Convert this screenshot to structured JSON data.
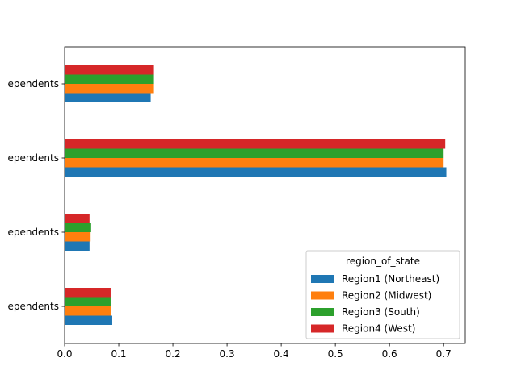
{
  "chart_data": {
    "type": "bar",
    "orientation": "horizontal",
    "categories": [
      "ependents",
      "ependents",
      "ependents",
      "ependents"
    ],
    "series": [
      {
        "name": "Region1 (Northeast)",
        "color": "#1f77b4",
        "values": [
          0.088,
          0.046,
          0.705,
          0.159
        ]
      },
      {
        "name": "Region2 (Midwest)",
        "color": "#ff7f0e",
        "values": [
          0.085,
          0.048,
          0.7,
          0.165
        ]
      },
      {
        "name": "Region3 (South)",
        "color": "#2ca02c",
        "values": [
          0.085,
          0.049,
          0.7,
          0.165
        ]
      },
      {
        "name": "Region4 (West)",
        "color": "#d62728",
        "values": [
          0.085,
          0.046,
          0.703,
          0.165
        ]
      }
    ],
    "xlim": [
      0,
      0.74
    ],
    "xticks": [
      "0.0",
      "0.1",
      "0.2",
      "0.3",
      "0.4",
      "0.5",
      "0.6",
      "0.7"
    ],
    "legend": {
      "title": "region_of_state",
      "placement": "lower-right"
    },
    "grid": false
  }
}
